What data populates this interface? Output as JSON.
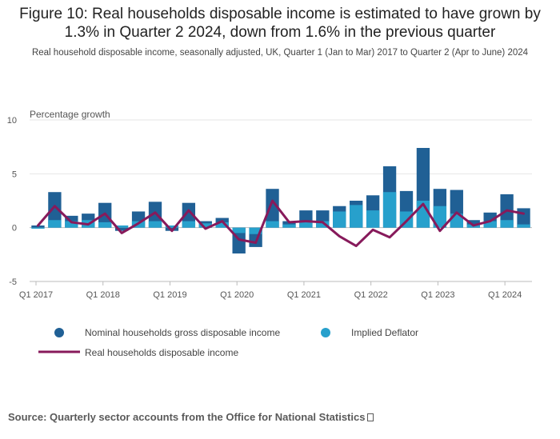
{
  "title": "Figure 10: Real households disposable income is estimated to have grown by 1.3% in Quarter 2 2024, down from 1.6% in the previous quarter",
  "subtitle": "Real household disposable income, seasonally adjusted, UK, Quarter 1 (Jan to Mar) 2017 to Quarter 2 (Apr to June) 2024",
  "source": "Source:  Quarterly sector accounts from the Office for National Statistics",
  "chart_data": {
    "type": "bar",
    "stacked": true,
    "ylabel": "Percentage growth",
    "ylim": [
      -5,
      10
    ],
    "yticks": [
      10,
      5,
      0,
      -5
    ],
    "grid": true,
    "legend_position": "bottom",
    "categories": [
      "Q1 2017",
      "Q2 2017",
      "Q3 2017",
      "Q4 2017",
      "Q1 2018",
      "Q2 2018",
      "Q3 2018",
      "Q4 2018",
      "Q1 2019",
      "Q2 2019",
      "Q3 2019",
      "Q4 2019",
      "Q1 2020",
      "Q2 2020",
      "Q3 2020",
      "Q4 2020",
      "Q1 2021",
      "Q2 2021",
      "Q3 2021",
      "Q4 2021",
      "Q1 2022",
      "Q2 2022",
      "Q3 2022",
      "Q4 2022",
      "Q1 2023",
      "Q2 2023",
      "Q3 2023",
      "Q4 2023",
      "Q1 2024",
      "Q2 2024"
    ],
    "xtick_labels": [
      "Q1 2017",
      "Q1 2018",
      "Q1 2019",
      "Q1 2020",
      "Q1 2021",
      "Q1 2022",
      "Q1 2023",
      "Q1 2024"
    ],
    "series": [
      {
        "name": "Nominal households gross disposable income",
        "kind": "bar",
        "color": "#206095",
        "values": [
          0.2,
          3.3,
          1.1,
          1.3,
          2.3,
          -0.3,
          1.5,
          2.4,
          -0.3,
          2.3,
          0.6,
          0.9,
          -2.4,
          -1.8,
          3.6,
          0.6,
          1.6,
          1.6,
          2.0,
          2.5,
          3.0,
          5.7,
          3.4,
          7.4,
          3.6,
          3.5,
          0.7,
          1.4,
          3.1,
          1.8
        ]
      },
      {
        "name": "Implied Deflator",
        "kind": "bar",
        "color": "#27a0cc",
        "values": [
          -0.1,
          0.7,
          0.6,
          0.7,
          0.5,
          0.2,
          0.6,
          0.6,
          0.2,
          0.6,
          0.4,
          0.5,
          -0.5,
          -0.6,
          0.6,
          0.3,
          0.5,
          0.6,
          1.5,
          2.1,
          1.6,
          3.3,
          1.5,
          2.5,
          2.0,
          1.3,
          0.3,
          0.6,
          0.7,
          0.3
        ]
      },
      {
        "name": "Real households disposable income",
        "kind": "line",
        "color": "#871a5b",
        "values": [
          0.2,
          2.0,
          0.5,
          0.3,
          1.3,
          -0.5,
          0.4,
          1.4,
          -0.3,
          1.6,
          -0.1,
          0.6,
          -1.1,
          -1.4,
          2.5,
          0.5,
          0.6,
          0.5,
          -0.8,
          -1.7,
          -0.2,
          -0.9,
          0.6,
          2.2,
          -0.3,
          1.4,
          0.2,
          0.6,
          1.6,
          1.3
        ]
      }
    ]
  }
}
